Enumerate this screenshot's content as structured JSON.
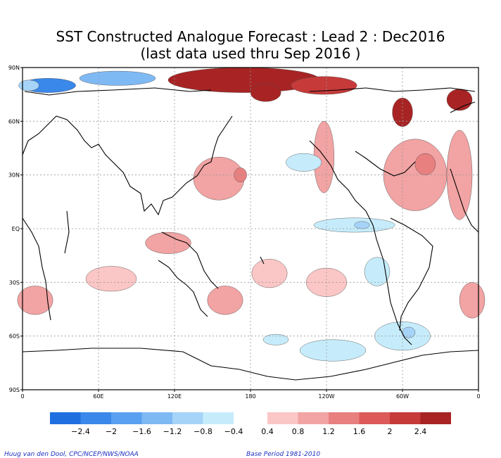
{
  "title_line1": "SST Constructed Analogue Forecast : Lead 2 : Dec2016",
  "title_line2": "(last data used thru Sep 2016 )",
  "footer_left": "Huug van den Dool, CPC/NCEP/NWS/NOAA",
  "footer_right": "Base Period 1981-2010",
  "chart_data": {
    "type": "heatmap",
    "description_units": "SST anomaly (degC)",
    "x_tick_labels": [
      "0",
      "60E",
      "120E",
      "180",
      "120W",
      "60W",
      "0"
    ],
    "y_tick_labels": [
      "90N",
      "60N",
      "30N",
      "EQ",
      "30S",
      "60S",
      "90S"
    ],
    "xlim": [
      0,
      360
    ],
    "ylim": [
      -90,
      90
    ],
    "grid": true,
    "colorbar": {
      "levels": [
        "-2.4",
        "-2",
        "-1.6",
        "-1.2",
        "-0.8",
        "-0.4",
        "0.4",
        "0.8",
        "1.2",
        "1.6",
        "2",
        "2.4"
      ],
      "negative_colors": [
        "#1f6fe0",
        "#3a88ea",
        "#5aa0f0",
        "#7fb9f4",
        "#a6d3f8",
        "#c6ecfb"
      ],
      "positive_colors": [
        "#fbc6c6",
        "#f2a3a3",
        "#e88080",
        "#dc5a5a",
        "#c63a3a",
        "#a82424"
      ]
    },
    "anomaly_regions": [
      {
        "lon": 175,
        "lat": 83,
        "rx": 60,
        "ry": 7,
        "value": 2.4
      },
      {
        "lon": 192,
        "lat": 76,
        "rx": 12,
        "ry": 5,
        "value": 2.4
      },
      {
        "lon": 238,
        "lat": 80,
        "rx": 26,
        "ry": 5,
        "value": 2.0
      },
      {
        "lon": 300,
        "lat": 65,
        "rx": 8,
        "ry": 8,
        "value": 2.4
      },
      {
        "lon": 345,
        "lat": 72,
        "rx": 10,
        "ry": 6,
        "value": 2.4
      },
      {
        "lon": 20,
        "lat": 80,
        "rx": 22,
        "ry": 4,
        "value": -2.0
      },
      {
        "lon": 75,
        "lat": 84,
        "rx": 30,
        "ry": 4,
        "value": -1.2
      },
      {
        "lon": 5,
        "lat": 80,
        "rx": 8,
        "ry": 3,
        "value": -0.8
      },
      {
        "lon": 155,
        "lat": 28,
        "rx": 20,
        "ry": 12,
        "value": 0.8
      },
      {
        "lon": 172,
        "lat": 30,
        "rx": 5,
        "ry": 4,
        "value": 1.2
      },
      {
        "lon": 238,
        "lat": 40,
        "rx": 8,
        "ry": 20,
        "value": 0.8
      },
      {
        "lon": 310,
        "lat": 30,
        "rx": 25,
        "ry": 20,
        "value": 0.8
      },
      {
        "lon": 318,
        "lat": 36,
        "rx": 8,
        "ry": 6,
        "value": 1.2
      },
      {
        "lon": 345,
        "lat": 30,
        "rx": 10,
        "ry": 25,
        "value": 0.8
      },
      {
        "lon": 222,
        "lat": 37,
        "rx": 14,
        "ry": 5,
        "value": -0.4
      },
      {
        "lon": 262,
        "lat": 2,
        "rx": 32,
        "ry": 4,
        "value": -0.4
      },
      {
        "lon": 268,
        "lat": 2,
        "rx": 6,
        "ry": 2,
        "value": -0.8
      },
      {
        "lon": 115,
        "lat": -8,
        "rx": 18,
        "ry": 6,
        "value": 0.8
      },
      {
        "lon": 70,
        "lat": -28,
        "rx": 20,
        "ry": 7,
        "value": 0.4
      },
      {
        "lon": 160,
        "lat": -40,
        "rx": 14,
        "ry": 8,
        "value": 0.8
      },
      {
        "lon": 240,
        "lat": -30,
        "rx": 16,
        "ry": 8,
        "value": 0.4
      },
      {
        "lon": 195,
        "lat": -25,
        "rx": 14,
        "ry": 8,
        "value": 0.4
      },
      {
        "lon": 280,
        "lat": -24,
        "rx": 10,
        "ry": 8,
        "value": -0.4
      },
      {
        "lon": 300,
        "lat": -60,
        "rx": 22,
        "ry": 8,
        "value": -0.4
      },
      {
        "lon": 305,
        "lat": -58,
        "rx": 5,
        "ry": 3,
        "value": -0.8
      },
      {
        "lon": 10,
        "lat": -40,
        "rx": 14,
        "ry": 8,
        "value": 0.8
      },
      {
        "lon": 355,
        "lat": -40,
        "rx": 10,
        "ry": 10,
        "value": 0.8
      },
      {
        "lon": 245,
        "lat": -68,
        "rx": 26,
        "ry": 6,
        "value": -0.4
      },
      {
        "lon": 200,
        "lat": -62,
        "rx": 10,
        "ry": 3,
        "value": -0.4
      }
    ]
  }
}
